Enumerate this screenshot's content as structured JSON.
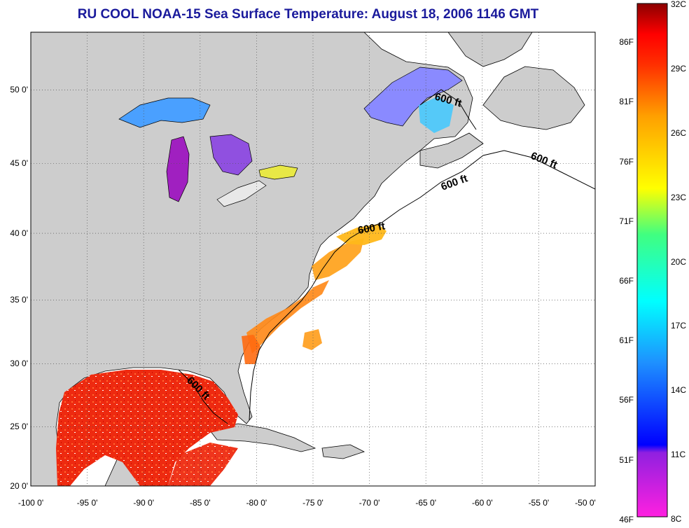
{
  "title": "RU COOL  NOAA-15  Sea Surface Temperature:  August 18, 2006 1146 GMT",
  "map": {
    "lon_range": [
      -100,
      -50
    ],
    "lat_range": [
      20,
      52.5
    ],
    "x_ticks": [
      "-100 0'",
      "-95 0'",
      "-90 0'",
      "-85 0'",
      "-80 0'",
      "-75 0'",
      "-70 0'",
      "-65 0'",
      "-60 0'",
      "-55 0'",
      "-50 0'"
    ],
    "y_ticks": [
      "20 0'",
      "25 0'",
      "30 0'",
      "35 0'",
      "40 0'",
      "45 0'",
      "50 0'"
    ],
    "grid": "dotted",
    "land_color": "#cdcdcd",
    "ocean_color": "#ffffff",
    "isobath_labels": [
      "600 ft",
      "600 ft",
      "600 ft",
      "600 ft",
      "600 ft"
    ]
  },
  "colorbar": {
    "fahrenheit_labels": [
      "86F",
      "81F",
      "76F",
      "71F",
      "66F",
      "61F",
      "56F",
      "51F",
      "46F"
    ],
    "celsius_labels": [
      "32C",
      "29C",
      "26C",
      "23C",
      "20C",
      "17C",
      "14C",
      "11C",
      "8C"
    ],
    "colors": [
      "#8b0000",
      "#ff0000",
      "#ff8c00",
      "#ffff00",
      "#7cfc00",
      "#00ffff",
      "#1e90ff",
      "#0000ff",
      "#8a2be2",
      "#ff00ff"
    ]
  }
}
